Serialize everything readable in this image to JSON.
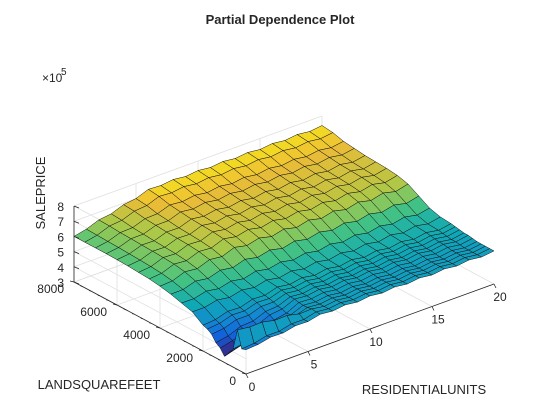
{
  "chart_data": {
    "type": "surface",
    "title": "Partial Dependence Plot",
    "xlabel": "RESIDENTIALUNITS",
    "ylabel": "LANDSQUAREFEET",
    "zlabel": "SALEPRICE",
    "z_exponent_label": "×10",
    "z_exponent_value": "5",
    "x_ticks": [
      "0",
      "5",
      "10",
      "15",
      "20"
    ],
    "y_ticks": [
      "0",
      "2000",
      "4000",
      "6000",
      "8000"
    ],
    "z_ticks": [
      "3",
      "4",
      "5",
      "6",
      "7",
      "8"
    ],
    "xlim": [
      0,
      20
    ],
    "ylim": [
      0,
      8000
    ],
    "zlim": [
      300000,
      800000
    ],
    "grid": true,
    "colormap": "parula",
    "surface": {
      "landsquarefeet": [
        0,
        200,
        400,
        600,
        800,
        1000,
        1200,
        1400,
        1600,
        1800,
        2000,
        2500,
        3000,
        3500,
        4000,
        4500,
        5000,
        5500,
        6000,
        6500,
        7000,
        7500,
        8000
      ],
      "residentialunits": [
        0,
        1,
        2,
        3,
        4,
        5,
        6,
        7,
        8,
        9,
        10,
        11,
        12,
        13,
        14,
        15,
        16,
        17,
        18,
        19,
        20
      ],
      "saleprice_at_low_units": [
        460000,
        450000,
        560000,
        420000,
        380000,
        340000,
        380000,
        400000,
        440000,
        460000,
        470000,
        520000,
        540000,
        560000,
        575000,
        585000,
        590000,
        595000,
        598000,
        600000,
        600000,
        600000,
        600000
      ],
      "saleprice_at_high_units": [
        510000,
        510000,
        510000,
        510000,
        510000,
        515000,
        520000,
        520000,
        525000,
        530000,
        535000,
        540000,
        560000,
        600000,
        640000,
        660000,
        670000,
        675000,
        680000,
        690000,
        700000,
        720000,
        730000
      ]
    }
  }
}
